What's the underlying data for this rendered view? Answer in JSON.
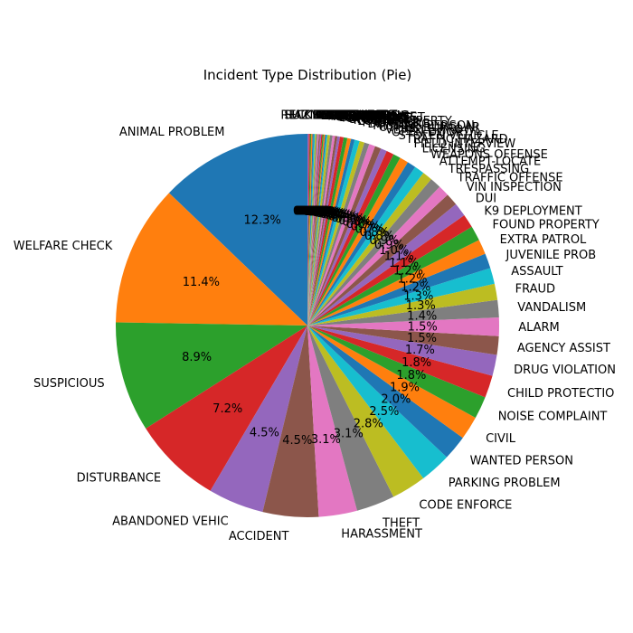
{
  "chart_data": {
    "type": "pie",
    "title": "Incident Type Distribution (Pie)",
    "start_angle_deg": 90,
    "direction": "counterclockwise",
    "colors": [
      "#1f77b4",
      "#ff7f0e",
      "#2ca02c",
      "#d62728",
      "#9467bd",
      "#8c564b",
      "#e377c2",
      "#7f7f7f",
      "#bcbd22",
      "#17becf"
    ],
    "slices": [
      {
        "label": "ANIMAL PROBLEM",
        "value": 12.3,
        "pct_label": "12.3%"
      },
      {
        "label": "WELFARE CHECK",
        "value": 11.4,
        "pct_label": "11.4%"
      },
      {
        "label": "SUSPICIOUS",
        "value": 8.9,
        "pct_label": "8.9%"
      },
      {
        "label": "DISTURBANCE",
        "value": 7.2,
        "pct_label": "7.2%"
      },
      {
        "label": "ABANDONED VEHIC",
        "value": 4.5,
        "pct_label": "4.5%"
      },
      {
        "label": "ACCIDENT",
        "value": 4.5,
        "pct_label": "4.5%"
      },
      {
        "label": "HARASSMENT",
        "value": 3.1,
        "pct_label": "3.1%"
      },
      {
        "label": "THEFT",
        "value": 3.1,
        "pct_label": "3.1%"
      },
      {
        "label": "CODE ENFORCE",
        "value": 2.8,
        "pct_label": "2.8%"
      },
      {
        "label": "PARKING PROBLEM",
        "value": 2.5,
        "pct_label": "2.5%"
      },
      {
        "label": "WANTED PERSON",
        "value": 2.0,
        "pct_label": "2.0%"
      },
      {
        "label": "CIVIL",
        "value": 1.9,
        "pct_label": "1.9%"
      },
      {
        "label": "NOISE COMPLAINT",
        "value": 1.8,
        "pct_label": "1.8%"
      },
      {
        "label": "CHILD PROTECTIO",
        "value": 1.8,
        "pct_label": "1.8%"
      },
      {
        "label": "DRUG VIOLATION",
        "value": 1.7,
        "pct_label": "1.7%"
      },
      {
        "label": "AGENCY ASSIST",
        "value": 1.5,
        "pct_label": "1.5%"
      },
      {
        "label": "ALARM",
        "value": 1.5,
        "pct_label": "1.5%"
      },
      {
        "label": "VANDALISM",
        "value": 1.4,
        "pct_label": "1.4%"
      },
      {
        "label": "FRAUD",
        "value": 1.3,
        "pct_label": "1.3%"
      },
      {
        "label": "ASSAULT",
        "value": 1.3,
        "pct_label": "1.3%"
      },
      {
        "label": "JUVENILE PROB",
        "value": 1.2,
        "pct_label": "1.2%"
      },
      {
        "label": "EXTRA PATROL",
        "value": 1.2,
        "pct_label": "1.2%"
      },
      {
        "label": "FOUND PROPERTY",
        "value": 1.2,
        "pct_label": "1.2%"
      },
      {
        "label": "K9 DEPLOYMENT",
        "value": 1.1,
        "pct_label": "1.1%"
      },
      {
        "label": "DUI",
        "value": 1.1,
        "pct_label": "1.1%"
      },
      {
        "label": "VIN INSPECTION",
        "value": 1.0,
        "pct_label": "1.0%"
      },
      {
        "label": "TRAFFIC OFFENSE",
        "value": 0.9,
        "pct_label": "0.9%"
      },
      {
        "label": "TRESPASSING",
        "value": 0.9,
        "pct_label": "0.9%"
      },
      {
        "label": "ATTEMPT-LOCATE",
        "value": 0.8,
        "pct_label": "0.8%"
      },
      {
        "label": "WEAPONS OFFENSE",
        "value": 0.8,
        "pct_label": "0.8%"
      },
      {
        "label": "LICENSING",
        "value": 0.7,
        "pct_label": "0.7%"
      },
      {
        "label": "FIELD INTERVIEW",
        "value": 0.7,
        "pct_label": "0.7%"
      },
      {
        "label": "TRAFFIC HAZARD",
        "value": 0.6,
        "pct_label": "0.6%"
      },
      {
        "label": "STOLEN VEHICLE",
        "value": 0.6,
        "pct_label": "0.6%"
      },
      {
        "label": "OPEN DOOR",
        "value": 0.5,
        "pct_label": "0.5%"
      },
      {
        "label": "VEHICLE PROWL",
        "value": 0.5,
        "pct_label": "0.5%"
      },
      {
        "label": "OTHER BURGLAR",
        "value": 0.5,
        "pct_label": "0.5%"
      },
      {
        "label": "MISSING PERSON",
        "value": 0.4,
        "pct_label": "0.4%"
      },
      {
        "label": "DOMESTIC",
        "value": 0.4,
        "pct_label": "0.4%"
      },
      {
        "label": "PROWLER",
        "value": 0.4,
        "pct_label": "0.4%"
      },
      {
        "label": "LOST PROPERTY",
        "value": 0.3,
        "pct_label": "0.3%"
      },
      {
        "label": "ROBBERY",
        "value": 0.3,
        "pct_label": "0.3%"
      },
      {
        "label": "SHOPLIFT",
        "value": 0.3,
        "pct_label": "0.3%"
      },
      {
        "label": "OVERDOSE",
        "value": 0.3,
        "pct_label": "0.3%"
      },
      {
        "label": "FIREWORKS",
        "value": 0.2,
        "pct_label": "0.2%"
      },
      {
        "label": "DEATH INVEST",
        "value": 0.2,
        "pct_label": "0.2%"
      },
      {
        "label": "SEX OFFENSE",
        "value": 0.2,
        "pct_label": "0.2%"
      },
      {
        "label": "ARSON",
        "value": 0.2,
        "pct_label": "0.2%"
      },
      {
        "label": "HIT AND RUN",
        "value": 0.2,
        "pct_label": "0.2%"
      },
      {
        "label": "WARRANT",
        "value": 0.1,
        "pct_label": "0.1%"
      },
      {
        "label": "RUNAWAY",
        "value": 0.1,
        "pct_label": "0.1%"
      },
      {
        "label": "KIDNAPPING",
        "value": 0.1,
        "pct_label": "0.1%"
      },
      {
        "label": "GRAFFITI",
        "value": 0.1,
        "pct_label": "0.1%"
      },
      {
        "label": "PANHANDLING",
        "value": 0.1,
        "pct_label": "0.1%"
      },
      {
        "label": "LITTERING",
        "value": 0.1,
        "pct_label": "0.1%"
      },
      {
        "label": "DOG BITE",
        "value": 0.1,
        "pct_label": "0.1%"
      },
      {
        "label": "LOITERING",
        "value": 0.1,
        "pct_label": "0.1%"
      },
      {
        "label": "MENTAL",
        "value": 0.1,
        "pct_label": "0.1%"
      },
      {
        "label": "GAS LEAK",
        "value": 0.1,
        "pct_label": "0.1%"
      },
      {
        "label": "FIRE",
        "value": 0.1,
        "pct_label": "0.1%"
      },
      {
        "label": "POWER LINES",
        "value": 0.1,
        "pct_label": "0.1%"
      },
      {
        "label": "BOMB THREAT",
        "value": 0.1,
        "pct_label": "0.1%"
      },
      {
        "label": "RECKLESS",
        "value": 0.1,
        "pct_label": "0.1%"
      },
      {
        "label": "HAZMAT",
        "value": 0.1,
        "pct_label": "0.1%"
      },
      {
        "label": "SUICIDE",
        "value": 0.1,
        "pct_label": "0.1%"
      }
    ]
  }
}
